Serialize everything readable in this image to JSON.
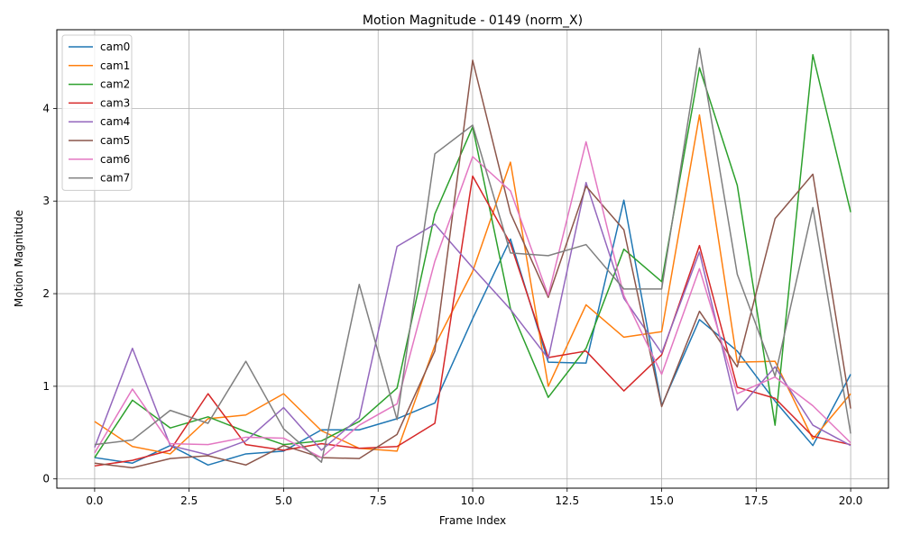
{
  "chart_data": {
    "type": "line",
    "title": "Motion Magnitude - 0149 (norm_X)",
    "xlabel": "Frame Index",
    "ylabel": "Motion Magnitude",
    "xlim": [
      -1,
      21
    ],
    "ylim": [
      -0.1,
      4.85
    ],
    "xticks": [
      0.0,
      2.5,
      5.0,
      7.5,
      10.0,
      12.5,
      15.0,
      17.5,
      20.0
    ],
    "xtick_labels": [
      "0.0",
      "2.5",
      "5.0",
      "7.5",
      "10.0",
      "12.5",
      "15.0",
      "17.5",
      "20.0"
    ],
    "yticks": [
      0,
      1,
      2,
      3,
      4
    ],
    "ytick_labels": [
      "0",
      "1",
      "2",
      "3",
      "4"
    ],
    "grid": true,
    "legend_position": "upper-left",
    "x": [
      0,
      1,
      2,
      3,
      4,
      5,
      6,
      7,
      8,
      9,
      10,
      11,
      12,
      13,
      14,
      15,
      16,
      17,
      18,
      19,
      20
    ],
    "series": [
      {
        "name": "cam0",
        "color": "#1f77b4",
        "values": [
          0.23,
          0.17,
          0.36,
          0.15,
          0.27,
          0.3,
          0.53,
          0.53,
          0.65,
          0.82,
          1.73,
          2.59,
          1.26,
          1.25,
          3.01,
          0.79,
          1.72,
          1.38,
          0.84,
          0.36,
          1.13
        ]
      },
      {
        "name": "cam1",
        "color": "#ff7f0e",
        "values": [
          0.62,
          0.35,
          0.27,
          0.65,
          0.69,
          0.92,
          0.52,
          0.33,
          0.3,
          1.44,
          2.24,
          3.42,
          1.0,
          1.88,
          1.53,
          1.59,
          3.93,
          1.26,
          1.27,
          0.43,
          0.92
        ]
      },
      {
        "name": "cam2",
        "color": "#2ca02c",
        "values": [
          0.23,
          0.85,
          0.55,
          0.67,
          0.51,
          0.37,
          0.41,
          0.62,
          0.98,
          2.86,
          3.8,
          1.84,
          0.88,
          1.41,
          2.48,
          2.13,
          4.44,
          3.17,
          0.58,
          4.58,
          2.88
        ]
      },
      {
        "name": "cam3",
        "color": "#d62728",
        "values": [
          0.14,
          0.2,
          0.31,
          0.92,
          0.37,
          0.31,
          0.38,
          0.33,
          0.35,
          0.6,
          3.27,
          2.54,
          1.31,
          1.38,
          0.95,
          1.34,
          2.52,
          0.99,
          0.87,
          0.46,
          0.37
        ]
      },
      {
        "name": "cam4",
        "color": "#9467bd",
        "values": [
          0.34,
          1.41,
          0.36,
          0.26,
          0.41,
          0.77,
          0.31,
          0.66,
          2.51,
          2.75,
          2.28,
          1.83,
          1.3,
          3.2,
          1.95,
          1.36,
          2.45,
          0.74,
          1.21,
          0.58,
          0.36
        ]
      },
      {
        "name": "cam5",
        "color": "#8c564b",
        "values": [
          0.17,
          0.12,
          0.22,
          0.25,
          0.15,
          0.36,
          0.23,
          0.22,
          0.48,
          1.38,
          4.52,
          2.87,
          1.96,
          3.16,
          2.69,
          0.78,
          1.81,
          1.21,
          2.81,
          3.29,
          0.76
        ]
      },
      {
        "name": "cam6",
        "color": "#e377c2",
        "values": [
          0.28,
          0.97,
          0.38,
          0.37,
          0.45,
          0.44,
          0.23,
          0.58,
          0.81,
          2.35,
          3.48,
          3.11,
          1.98,
          3.64,
          1.98,
          1.13,
          2.27,
          0.92,
          1.1,
          0.79,
          0.39
        ]
      },
      {
        "name": "cam7",
        "color": "#7f7f7f",
        "values": [
          0.37,
          0.42,
          0.74,
          0.6,
          1.27,
          0.54,
          0.18,
          2.1,
          0.64,
          3.51,
          3.82,
          2.44,
          2.41,
          2.53,
          2.05,
          2.05,
          4.65,
          2.21,
          1.11,
          2.93,
          0.49
        ]
      }
    ]
  }
}
